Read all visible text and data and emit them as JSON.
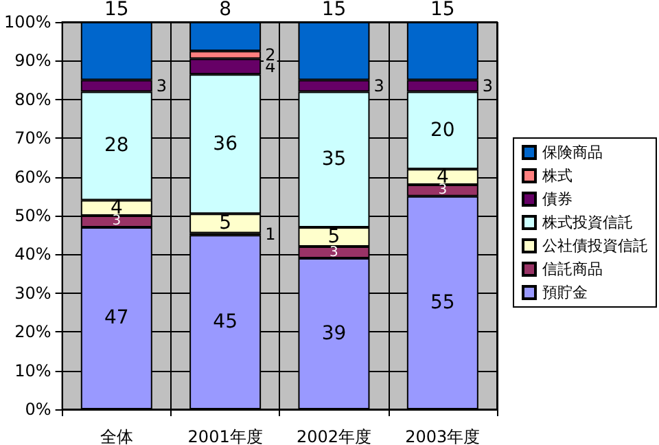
{
  "chart_data": {
    "type": "bar",
    "stacked": true,
    "categories": [
      "全体",
      "2001年度",
      "2002年度",
      "2003年度"
    ],
    "series": [
      {
        "name": "預貯金",
        "color": "#9999ff",
        "values": [
          47,
          45,
          39,
          55
        ]
      },
      {
        "name": "信託商品",
        "color": "#993366",
        "values": [
          3,
          0.5,
          3,
          3
        ],
        "value_labels": [
          "3",
          "1",
          "3",
          "3"
        ]
      },
      {
        "name": "公社債投資信託",
        "color": "#ffffcc",
        "values": [
          4,
          5,
          5,
          4
        ]
      },
      {
        "name": "株式投資信託",
        "color": "#ccffff",
        "values": [
          28,
          36,
          35,
          20
        ]
      },
      {
        "name": "債券",
        "color": "#660066",
        "values": [
          3,
          4,
          3,
          3
        ]
      },
      {
        "name": "株式",
        "color": "#ff8080",
        "values": [
          null,
          2,
          null,
          null
        ]
      },
      {
        "name": "保険商品",
        "color": "#0066cc",
        "values": [
          15,
          7.5,
          15,
          15
        ],
        "value_labels": [
          "15",
          "8",
          "15",
          "15"
        ]
      }
    ],
    "data_labels": true,
    "ylim": [
      0,
      100
    ],
    "yticks": [
      {
        "value": 0,
        "label": "0%"
      },
      {
        "value": 10,
        "label": "10%"
      },
      {
        "value": 20,
        "label": "20%"
      },
      {
        "value": 30,
        "label": "30%"
      },
      {
        "value": 40,
        "label": "40%"
      },
      {
        "value": 50,
        "label": "50%"
      },
      {
        "value": 60,
        "label": "60%"
      },
      {
        "value": 70,
        "label": "70%"
      },
      {
        "value": 80,
        "label": "80%"
      },
      {
        "value": 90,
        "label": "90%"
      },
      {
        "value": 100,
        "label": "100%"
      }
    ],
    "grid": true,
    "legend": "right"
  }
}
